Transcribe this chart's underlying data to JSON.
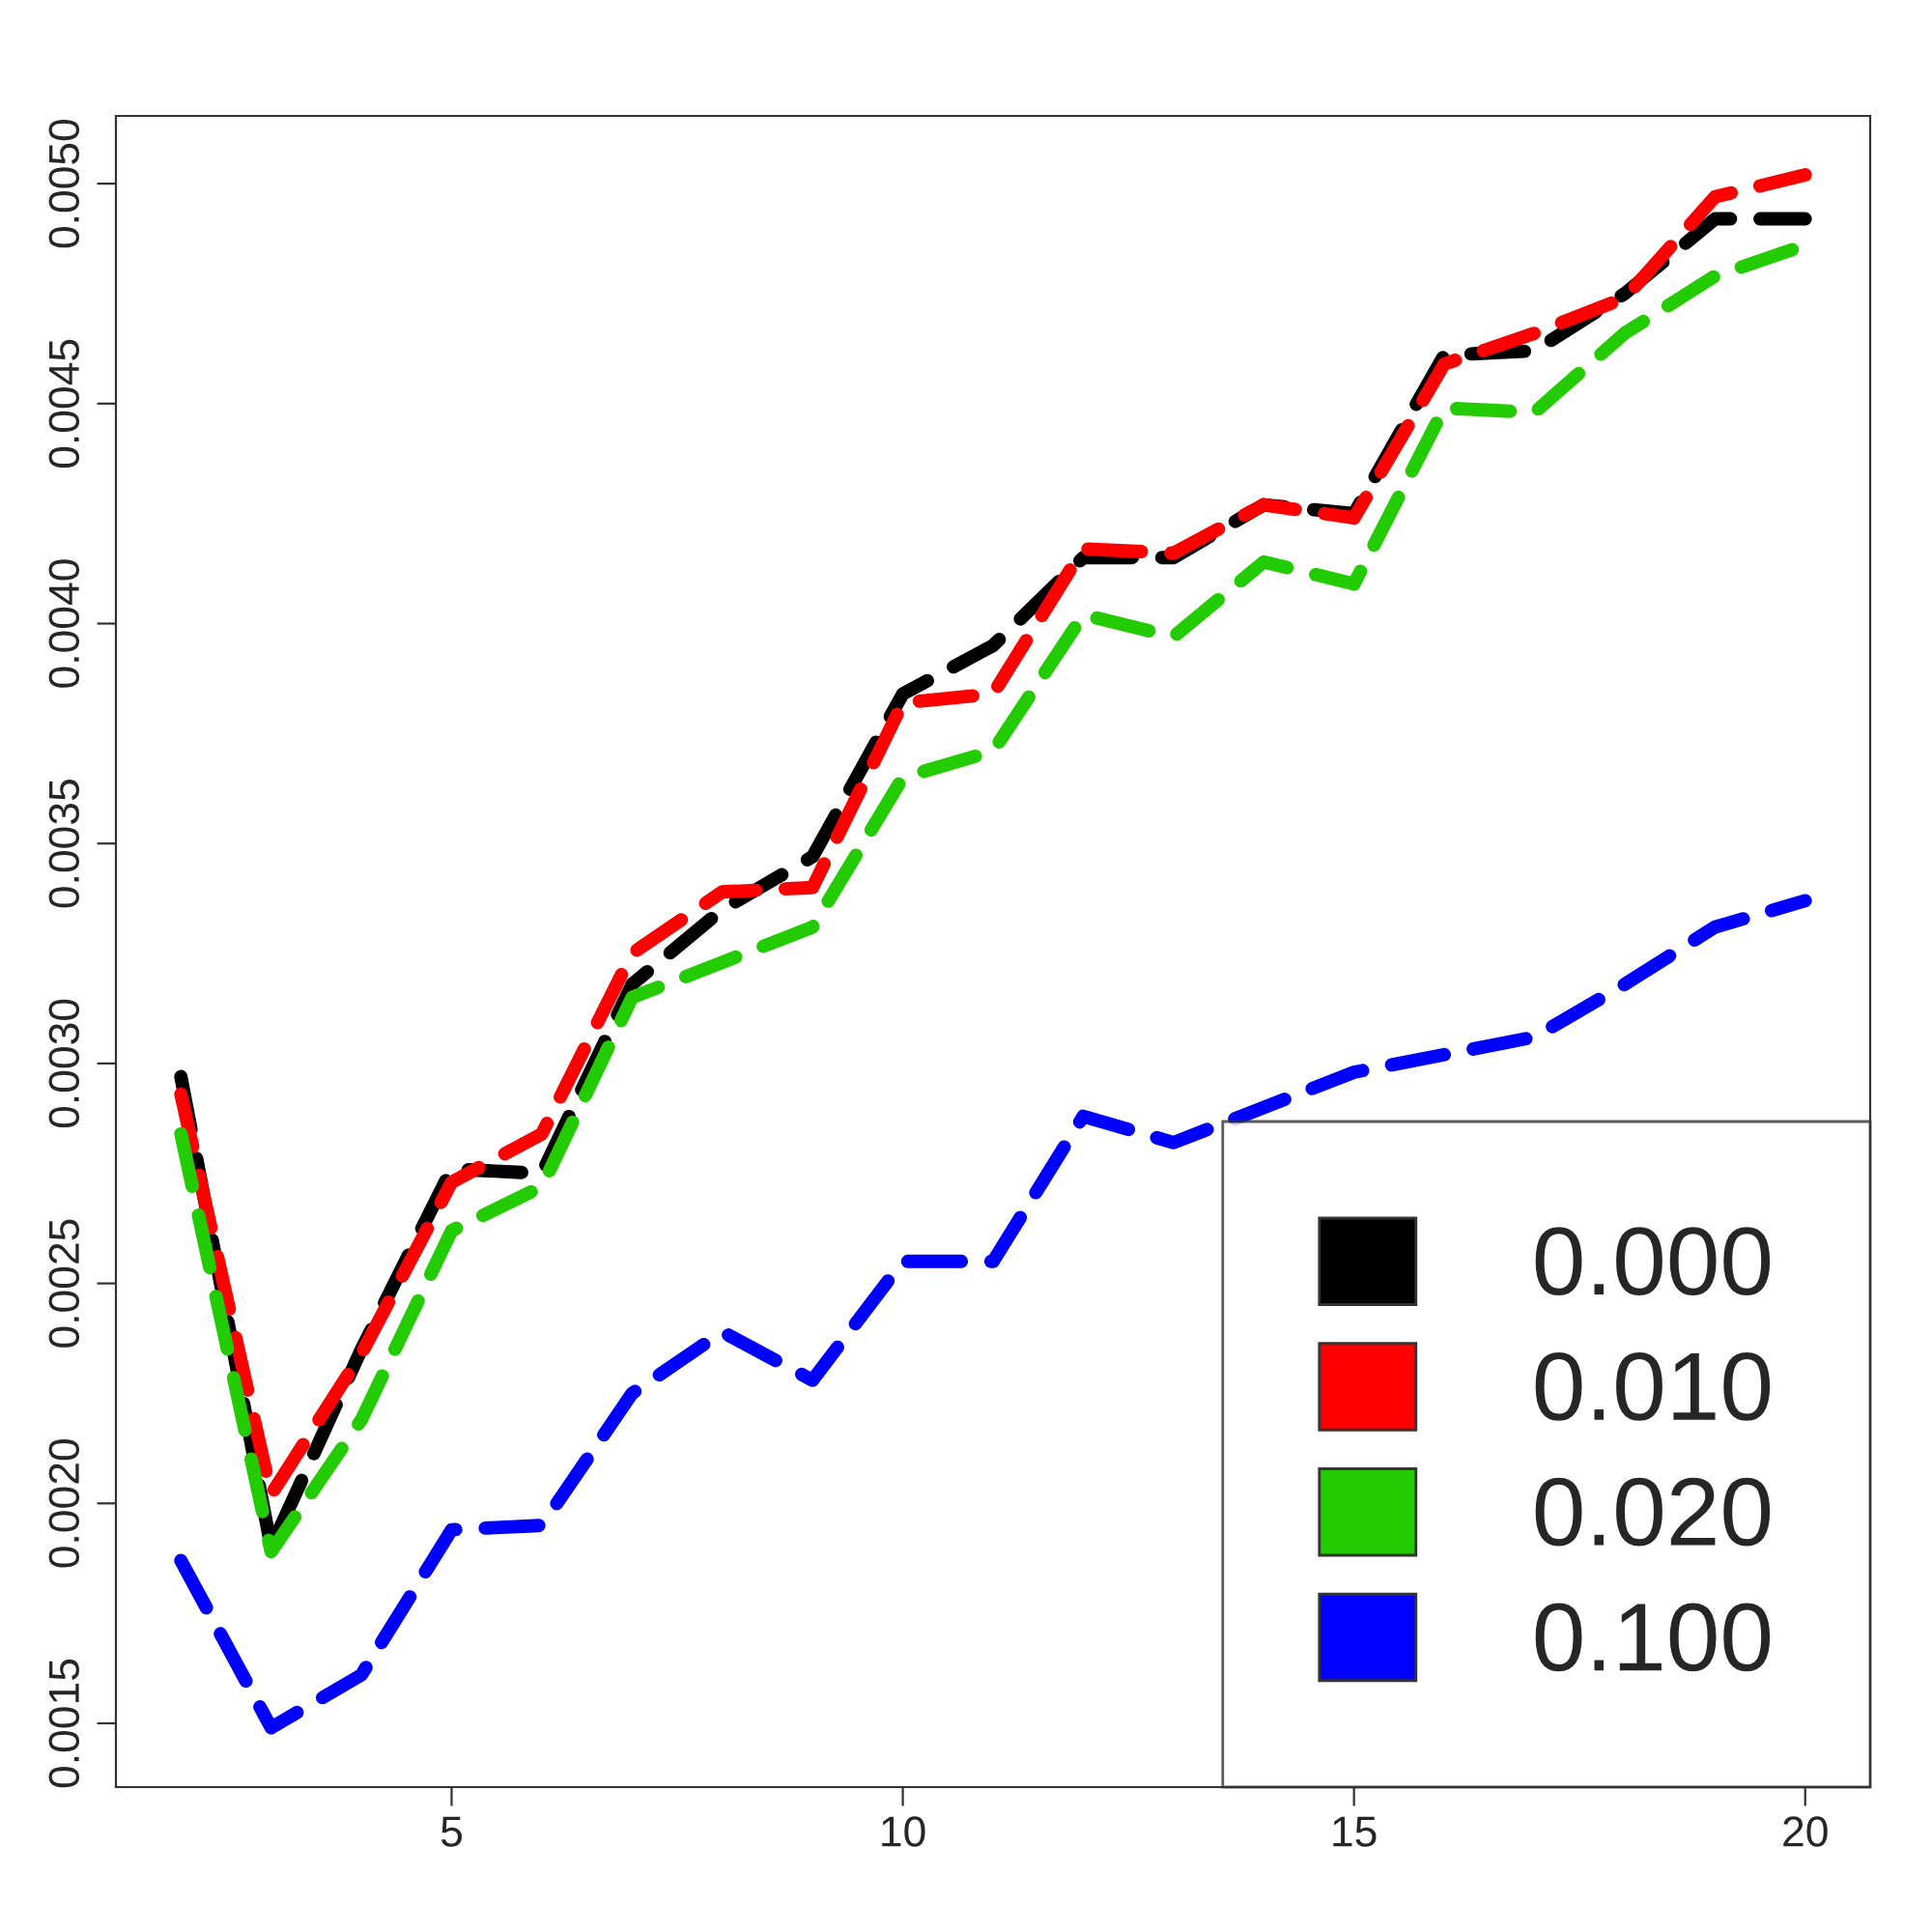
{
  "chart_data": {
    "type": "line",
    "x": [
      2,
      3,
      4,
      5,
      6,
      7,
      8,
      9,
      10,
      11,
      12,
      13,
      14,
      15,
      16,
      17,
      18,
      19,
      20
    ],
    "series": [
      {
        "name": "0.000",
        "color": "#000000",
        "values": [
          0.00297,
          0.0019,
          0.00235,
          0.00276,
          0.00275,
          0.00318,
          0.00335,
          0.00347,
          0.00384,
          0.00395,
          0.00415,
          0.00415,
          0.00427,
          0.00425,
          0.00461,
          0.00462,
          0.00475,
          0.00492,
          0.00492
        ]
      },
      {
        "name": "0.010",
        "color": "#ff0000",
        "values": [
          0.00293,
          0.00202,
          0.00234,
          0.00273,
          0.00284,
          0.00325,
          0.00339,
          0.0034,
          0.00382,
          0.00384,
          0.00417,
          0.00416,
          0.00427,
          0.00424,
          0.00459,
          0.00466,
          0.00474,
          0.00497,
          0.00502
        ]
      },
      {
        "name": "0.020",
        "color": "#22cc00",
        "values": [
          0.00284,
          0.00189,
          0.00219,
          0.00262,
          0.00272,
          0.00315,
          0.00323,
          0.00331,
          0.00365,
          0.00371,
          0.00402,
          0.00397,
          0.00414,
          0.00409,
          0.00449,
          0.00448,
          0.00466,
          0.00479,
          0.00486
        ]
      },
      {
        "name": "0.100",
        "color": "#0000ff",
        "values": [
          0.00187,
          0.00149,
          0.00161,
          0.00194,
          0.00195,
          0.00225,
          0.00239,
          0.00228,
          0.00255,
          0.00255,
          0.00288,
          0.00282,
          0.0029,
          0.00298,
          0.00302,
          0.00306,
          0.00318,
          0.00331,
          0.00337
        ]
      }
    ],
    "xlim": [
      1.28,
      20.72
    ],
    "xticks": [
      5,
      10,
      15,
      20
    ],
    "ylim": [
      0.001355,
      0.005154
    ],
    "yticks": [
      0.0015,
      {
        "value": 0.002,
        "label": "0.0020"
      },
      0.0025,
      {
        "value": 0.003,
        "label": "0.0030"
      },
      0.0035,
      {
        "value": 0.004,
        "label": "0.0040"
      },
      0.0045,
      {
        "value": 0.005,
        "label": "0.0050"
      }
    ],
    "line_style": "dashed",
    "marker": "none",
    "legend": "bottom right",
    "grid": false
  }
}
